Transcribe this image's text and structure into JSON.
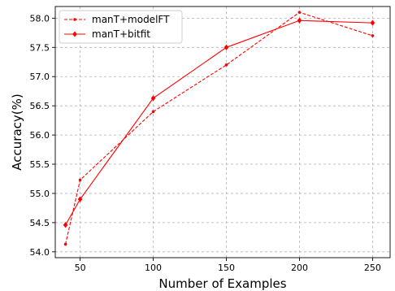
{
  "chart_data": {
    "type": "line",
    "title": "",
    "xlabel": "Number of Examples",
    "ylabel": "Accuracy(%)",
    "xlim": [
      33,
      262
    ],
    "ylim": [
      53.9,
      58.2
    ],
    "xticks": [
      50,
      100,
      150,
      200,
      250
    ],
    "yticks": [
      54.0,
      54.5,
      55.0,
      55.5,
      56.0,
      56.5,
      57.0,
      57.5,
      58.0
    ],
    "grid": true,
    "legend_position": "top-left",
    "series": [
      {
        "name": "manT+modelFT",
        "color": "#ff0000",
        "line_style": "dashed",
        "marker": "dot",
        "x": [
          40,
          50,
          100,
          150,
          200,
          250
        ],
        "y": [
          54.13,
          55.23,
          56.4,
          57.2,
          58.1,
          57.7
        ]
      },
      {
        "name": "manT+bitfit",
        "color": "#ff0000",
        "line_style": "solid",
        "marker": "diamond",
        "x": [
          40,
          50,
          100,
          150,
          200,
          250
        ],
        "y": [
          54.46,
          54.9,
          56.63,
          57.5,
          57.96,
          57.92
        ]
      }
    ]
  }
}
